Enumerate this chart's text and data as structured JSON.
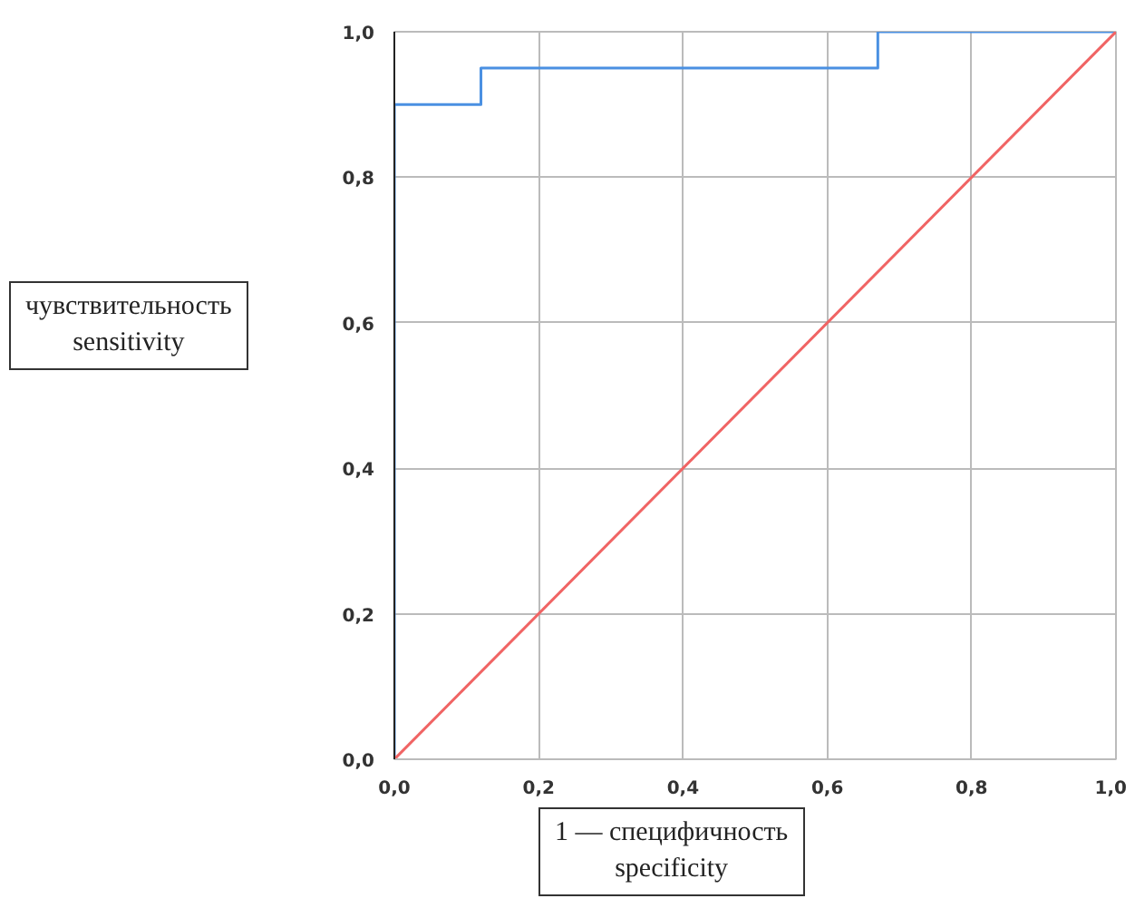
{
  "chart_data": {
    "type": "line",
    "xlabel": "1 — специфичность\nspecificity",
    "ylabel": "чувствительность\nsensitivity",
    "xlim": [
      0,
      1
    ],
    "ylim": [
      0,
      1
    ],
    "xticks": [
      {
        "value": 0,
        "label": "0,0"
      },
      {
        "value": 0.2,
        "label": "0,2"
      },
      {
        "value": 0.4,
        "label": "0,4"
      },
      {
        "value": 0.6,
        "label": "0,6"
      },
      {
        "value": 0.8,
        "label": "0,8"
      },
      {
        "value": 1,
        "label": "1,0"
      }
    ],
    "yticks": [
      {
        "value": 0,
        "label": "0,0"
      },
      {
        "value": 0.2,
        "label": "0,2"
      },
      {
        "value": 0.4,
        "label": "0,4"
      },
      {
        "value": 0.6,
        "label": "0,6"
      },
      {
        "value": 0.8,
        "label": "0,8"
      },
      {
        "value": 1,
        "label": "1,0"
      }
    ],
    "series": [
      {
        "color": "#4a90e2",
        "x": [
          0,
          0,
          0.12,
          0.12,
          0.67,
          0.67,
          1
        ],
        "values": [
          0,
          0.9,
          0.9,
          0.95,
          0.95,
          1,
          1
        ]
      },
      {
        "color": "#f06464",
        "x": [
          0,
          1
        ],
        "values": [
          0,
          1
        ]
      }
    ],
    "grid": true
  }
}
